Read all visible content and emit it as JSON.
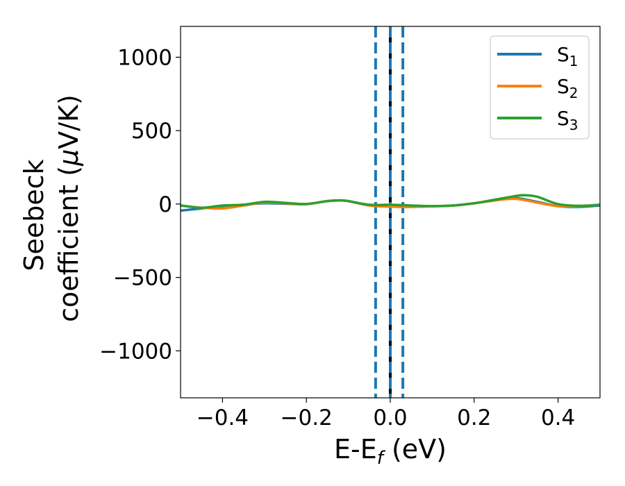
{
  "chart_data": {
    "type": "line",
    "xlabel_main": "E-E",
    "xlabel_sub": "f",
    "xlabel_unit": " (eV)",
    "ylabel_line1": "Seebeck",
    "ylabel_line2_prefix": "coefficient  (",
    "ylabel_mu": "μ",
    "ylabel_line2_suffix": "V/K)",
    "xlim": [
      -0.5,
      0.5
    ],
    "ylim": [
      -1320,
      1210
    ],
    "xticks": [
      -0.4,
      -0.2,
      0.0,
      0.2,
      0.4
    ],
    "xtick_labels": [
      "−0.4",
      "−0.2",
      "0.0",
      "0.2",
      "0.4"
    ],
    "yticks": [
      -1000,
      -500,
      0,
      500,
      1000
    ],
    "ytick_labels": [
      "−1000",
      "−500",
      "0",
      "500",
      "1000"
    ],
    "vlines": [
      {
        "x": -0.035,
        "color": "#1f77b4",
        "style": "dashed"
      },
      {
        "x": 0.0,
        "color": "#000000",
        "style": "solid"
      },
      {
        "x": 0.0,
        "color": "#1f77b4",
        "style": "dashed"
      },
      {
        "x": 0.03,
        "color": "#1f77b4",
        "style": "dashed"
      }
    ],
    "legend_position": "top-right",
    "series": [
      {
        "name": "S",
        "sub": "1",
        "color": "#1f77b4",
        "x": [
          -0.5,
          -0.45,
          -0.4,
          -0.35,
          -0.3,
          -0.25,
          -0.2,
          -0.15,
          -0.12,
          -0.1,
          -0.05,
          0.0,
          0.05,
          0.1,
          0.15,
          0.2,
          0.25,
          0.3,
          0.35,
          0.4,
          0.45,
          0.5
        ],
        "y": [
          -45,
          -30,
          -15,
          -5,
          5,
          2,
          0,
          20,
          25,
          20,
          -8,
          -15,
          -18,
          -15,
          -10,
          5,
          25,
          40,
          15,
          -15,
          -20,
          -10
        ]
      },
      {
        "name": "S",
        "sub": "2",
        "color": "#ff7f0e",
        "x": [
          -0.5,
          -0.45,
          -0.4,
          -0.35,
          -0.3,
          -0.25,
          -0.2,
          -0.15,
          -0.12,
          -0.1,
          -0.05,
          0.0,
          0.05,
          0.1,
          0.15,
          0.2,
          0.25,
          0.3,
          0.35,
          0.4,
          0.45,
          0.5
        ],
        "y": [
          -10,
          -25,
          -30,
          -10,
          10,
          5,
          0,
          20,
          25,
          20,
          -10,
          -18,
          -20,
          -15,
          -10,
          5,
          25,
          35,
          10,
          -15,
          -15,
          -5
        ]
      },
      {
        "name": "S",
        "sub": "3",
        "color": "#2ca02c",
        "x": [
          -0.5,
          -0.45,
          -0.4,
          -0.35,
          -0.3,
          -0.25,
          -0.2,
          -0.15,
          -0.12,
          -0.1,
          -0.05,
          0.0,
          0.05,
          0.1,
          0.15,
          0.2,
          0.25,
          0.3,
          0.32,
          0.35,
          0.4,
          0.45,
          0.5
        ],
        "y": [
          -10,
          -25,
          -10,
          -5,
          15,
          8,
          0,
          20,
          25,
          20,
          -5,
          -5,
          -10,
          -15,
          -10,
          5,
          30,
          55,
          60,
          50,
          0,
          -12,
          -5
        ]
      }
    ]
  }
}
